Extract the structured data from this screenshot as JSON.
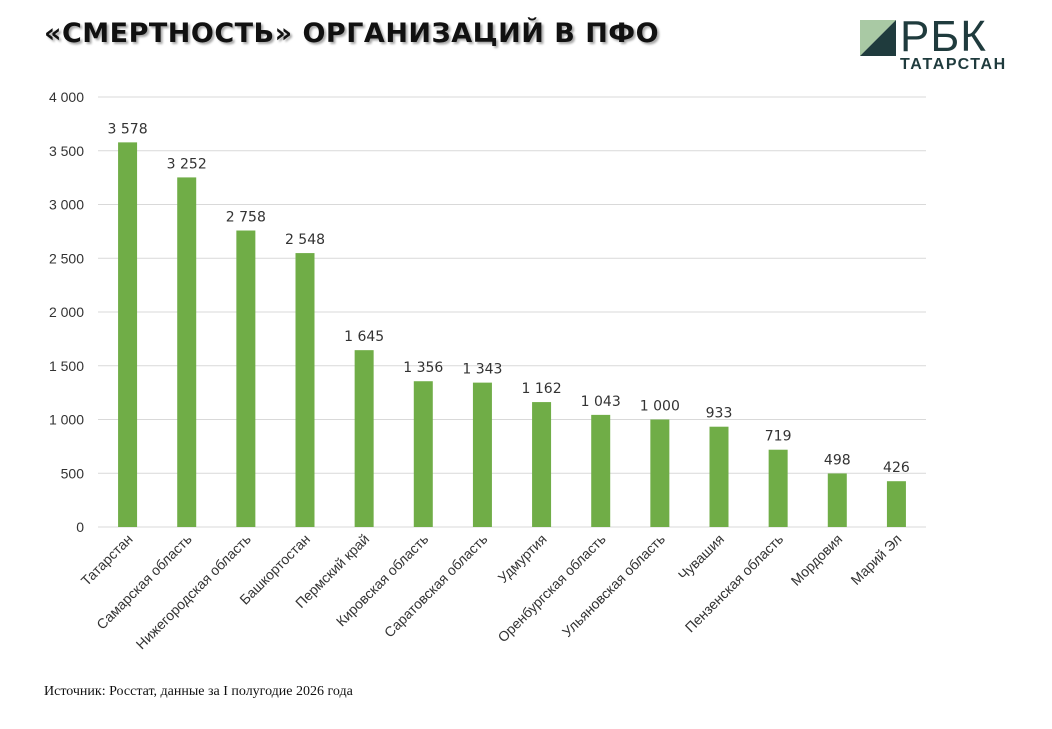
{
  "title": "«СМЕРТНОСТЬ» ОРГАНИЗАЦИЙ В ПФО",
  "logo": {
    "text": "РБК",
    "subtitle": "ТАТАРСТАН",
    "icon": "rbc-logo-icon"
  },
  "source": "Источник: Росстат, данные за I полугодие 2026 года",
  "colors": {
    "bar": "#70ad47",
    "grid": "#d9d9d9",
    "logo": "#1f3b3d"
  },
  "chart_data": {
    "type": "bar",
    "categories": [
      "Татарстан",
      "Самарская область",
      "Нижегородская область",
      "Башкортостан",
      "Пермский край",
      "Кировская область",
      "Саратовская область",
      "Удмуртия",
      "Оренбургская область",
      "Ульяновская область",
      "Чувашия",
      "Пензенская область",
      "Мордовия",
      "Марий Эл"
    ],
    "values": [
      3578,
      3252,
      2758,
      2548,
      1645,
      1356,
      1343,
      1162,
      1043,
      1000,
      933,
      719,
      498,
      426
    ],
    "value_labels": [
      "3 578",
      "3 252",
      "2 758",
      "2 548",
      "1 645",
      "1 356",
      "1 343",
      "1 162",
      "1 043",
      "1 000",
      "933",
      "719",
      "498",
      "426"
    ],
    "y_ticks": [
      0,
      500,
      1000,
      1500,
      2000,
      2500,
      3000,
      3500,
      4000
    ],
    "y_tick_labels": [
      "0",
      "500",
      "1 000",
      "1 500",
      "2 000",
      "2 500",
      "3 000",
      "3 500",
      "4 000"
    ],
    "ylim": [
      0,
      4000
    ],
    "grid": true,
    "legend": "none"
  }
}
